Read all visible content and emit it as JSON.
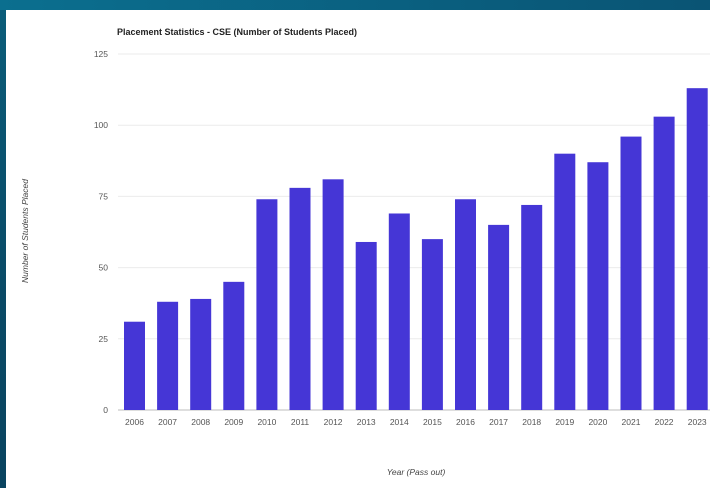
{
  "chart_data": {
    "type": "bar",
    "title": "Placement Statistics - CSE (Number of Students Placed)",
    "xlabel": "Year (Pass out)",
    "ylabel": "Number of Students Placed",
    "categories": [
      "2006",
      "2007",
      "2008",
      "2009",
      "2010",
      "2011",
      "2012",
      "2013",
      "2014",
      "2015",
      "2016",
      "2017",
      "2018",
      "2019",
      "2020",
      "2021",
      "2022",
      "2023"
    ],
    "values": [
      31,
      38,
      39,
      45,
      74,
      78,
      81,
      59,
      69,
      60,
      74,
      65,
      72,
      90,
      87,
      96,
      103,
      113
    ],
    "ylim": [
      0,
      125
    ],
    "yticks": [
      0,
      25,
      50,
      75,
      100,
      125
    ],
    "grid": true,
    "bar_color": "#4536d6"
  }
}
